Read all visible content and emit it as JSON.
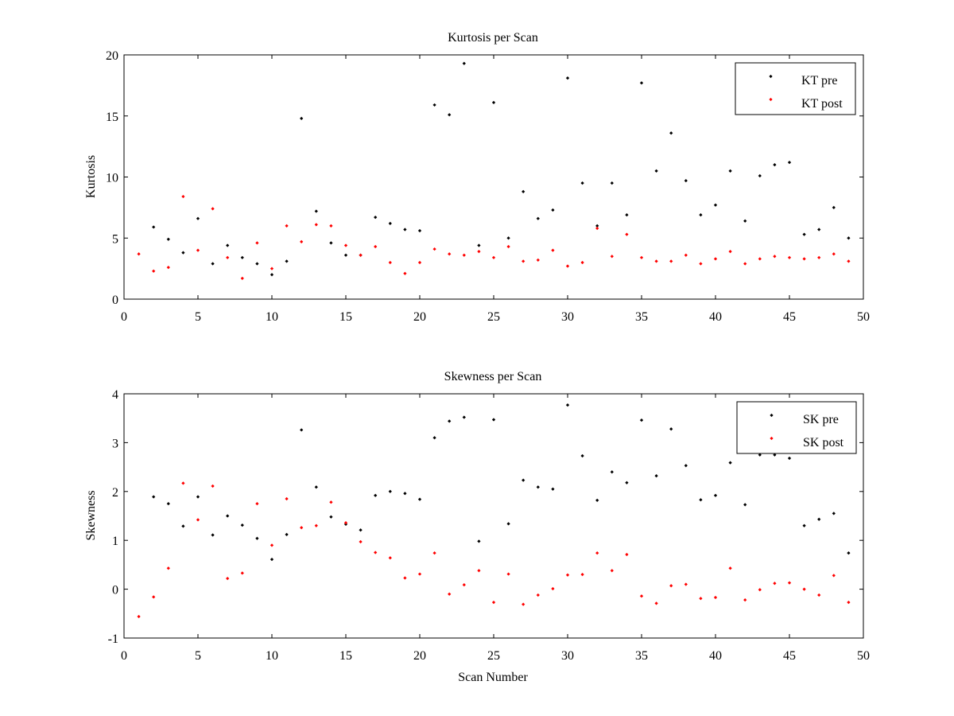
{
  "chart_data": [
    {
      "type": "scatter",
      "title": "Kurtosis per Scan",
      "xlabel": "",
      "ylabel": "Kurtosis",
      "xlim": [
        0,
        50
      ],
      "ylim": [
        0,
        20
      ],
      "xticks": [
        "0",
        "5",
        "10",
        "15",
        "20",
        "25",
        "30",
        "35",
        "40",
        "45",
        "50"
      ],
      "yticks": [
        "0",
        "5",
        "10",
        "15",
        "20"
      ],
      "grid": false,
      "legend_position": "top-right",
      "x": [
        1,
        2,
        3,
        4,
        5,
        6,
        7,
        8,
        9,
        10,
        11,
        12,
        13,
        14,
        15,
        16,
        17,
        18,
        19,
        20,
        21,
        22,
        23,
        24,
        25,
        26,
        27,
        28,
        29,
        30,
        31,
        32,
        33,
        34,
        35,
        36,
        37,
        38,
        39,
        40,
        41,
        42,
        43,
        44,
        45,
        46,
        47,
        48,
        49
      ],
      "series": [
        {
          "name": "KT pre",
          "color": "#000000",
          "x": [
            2,
            3,
            4,
            5,
            6,
            7,
            8,
            9,
            10,
            11,
            12,
            13,
            14,
            15,
            16,
            17,
            18,
            19,
            20,
            21,
            22,
            23,
            24,
            25,
            26,
            27,
            28,
            29,
            30,
            31,
            32,
            33,
            34,
            35,
            36,
            37,
            38,
            39,
            40,
            41,
            42,
            43,
            44,
            45,
            46,
            47,
            48,
            49
          ],
          "values": [
            5.9,
            4.9,
            3.8,
            6.6,
            2.9,
            4.4,
            3.4,
            2.9,
            2.0,
            3.1,
            14.8,
            7.2,
            4.6,
            3.6,
            3.6,
            6.7,
            6.2,
            5.7,
            5.6,
            15.9,
            15.1,
            19.3,
            4.4,
            16.1,
            5.0,
            8.8,
            6.6,
            7.3,
            18.1,
            9.5,
            6.0,
            9.5,
            6.9,
            17.7,
            10.5,
            13.6,
            9.7,
            6.9,
            7.7,
            10.5,
            6.4,
            10.1,
            11.0,
            11.2,
            5.3,
            5.7,
            7.5,
            5.0
          ]
        },
        {
          "name": "KT post",
          "color": "#ff0000",
          "x": [
            1,
            2,
            3,
            4,
            5,
            6,
            7,
            8,
            9,
            10,
            11,
            12,
            13,
            14,
            15,
            16,
            17,
            18,
            19,
            20,
            21,
            22,
            23,
            24,
            25,
            26,
            27,
            28,
            29,
            30,
            31,
            32,
            33,
            34,
            35,
            36,
            37,
            38,
            39,
            40,
            41,
            42,
            43,
            44,
            45,
            46,
            47,
            48,
            49
          ],
          "values": [
            3.7,
            2.3,
            2.6,
            8.4,
            4.0,
            7.4,
            3.4,
            1.7,
            4.6,
            2.5,
            6.0,
            4.7,
            6.1,
            6.0,
            4.4,
            3.6,
            4.3,
            3.0,
            2.1,
            3.0,
            4.1,
            3.7,
            3.6,
            3.9,
            3.4,
            4.3,
            3.1,
            3.2,
            4.0,
            2.7,
            3.0,
            5.8,
            3.5,
            5.3,
            3.4,
            3.1,
            3.1,
            3.6,
            2.9,
            3.3,
            3.9,
            2.9,
            3.3,
            3.5,
            3.4,
            3.3,
            3.4,
            3.7,
            3.1
          ]
        }
      ]
    },
    {
      "type": "scatter",
      "title": "Skewness per Scan",
      "xlabel": "Scan Number",
      "ylabel": "Skewness",
      "xlim": [
        0,
        50
      ],
      "ylim": [
        -1,
        4
      ],
      "xticks": [
        "0",
        "5",
        "10",
        "15",
        "20",
        "25",
        "30",
        "35",
        "40",
        "45",
        "50"
      ],
      "yticks": [
        "-1",
        "0",
        "1",
        "2",
        "3",
        "4"
      ],
      "grid": false,
      "legend_position": "top-right",
      "series": [
        {
          "name": "SK pre",
          "color": "#000000",
          "x": [
            2,
            3,
            4,
            5,
            6,
            7,
            8,
            9,
            10,
            11,
            12,
            13,
            14,
            15,
            16,
            17,
            18,
            19,
            20,
            21,
            22,
            23,
            24,
            25,
            26,
            27,
            28,
            29,
            30,
            31,
            32,
            33,
            34,
            35,
            36,
            37,
            38,
            39,
            40,
            41,
            42,
            43,
            44,
            45,
            46,
            47,
            48,
            49
          ],
          "values": [
            1.89,
            1.75,
            1.29,
            1.89,
            1.11,
            1.5,
            1.31,
            1.04,
            0.61,
            1.12,
            3.26,
            2.09,
            1.48,
            1.33,
            1.21,
            1.92,
            2.0,
            1.96,
            1.84,
            3.1,
            3.44,
            3.52,
            0.98,
            3.47,
            1.34,
            2.23,
            2.09,
            2.05,
            3.77,
            2.73,
            1.82,
            2.4,
            2.18,
            3.46,
            2.32,
            3.28,
            2.53,
            1.83,
            1.92,
            2.59,
            1.73,
            2.75,
            2.75,
            2.68,
            1.3,
            1.43,
            1.55,
            0.74
          ]
        },
        {
          "name": "SK post",
          "color": "#ff0000",
          "x": [
            1,
            2,
            3,
            4,
            5,
            6,
            7,
            8,
            9,
            10,
            11,
            12,
            13,
            14,
            15,
            16,
            17,
            18,
            19,
            20,
            21,
            22,
            23,
            24,
            25,
            26,
            27,
            28,
            29,
            30,
            31,
            32,
            33,
            34,
            35,
            36,
            37,
            38,
            39,
            40,
            41,
            42,
            43,
            44,
            45,
            46,
            47,
            48,
            49
          ],
          "values": [
            -0.56,
            -0.16,
            0.43,
            2.17,
            1.42,
            2.11,
            0.22,
            0.33,
            1.75,
            0.9,
            1.85,
            1.26,
            1.3,
            1.78,
            1.36,
            0.97,
            0.75,
            0.64,
            0.23,
            0.31,
            0.74,
            -0.1,
            0.09,
            0.38,
            -0.27,
            0.31,
            -0.31,
            -0.12,
            0.01,
            0.29,
            0.3,
            0.74,
            0.38,
            0.71,
            -0.14,
            -0.29,
            0.07,
            0.1,
            -0.19,
            -0.17,
            0.43,
            -0.22,
            -0.01,
            0.12,
            0.13,
            0.0,
            -0.12,
            0.28,
            -0.27
          ]
        }
      ]
    }
  ]
}
